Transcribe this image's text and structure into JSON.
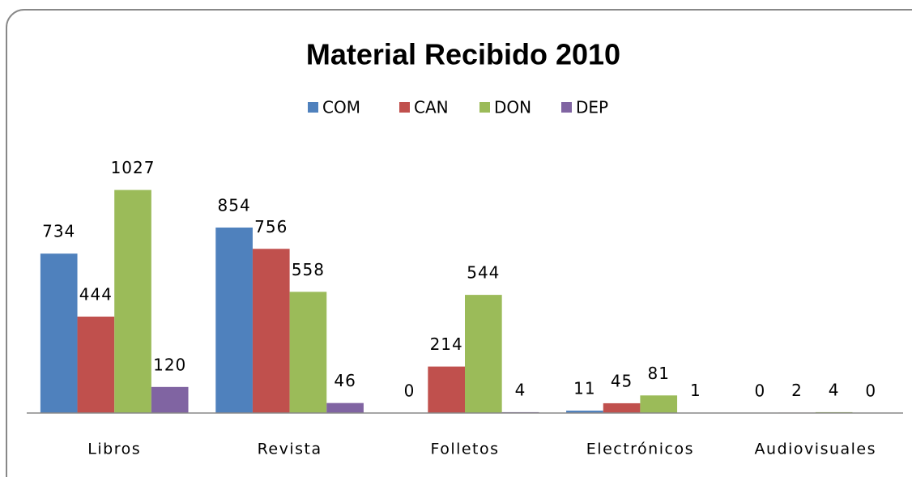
{
  "chart_data": {
    "type": "bar",
    "title": "Material Recibido 2010",
    "categories": [
      "Libros",
      "Revista",
      "Folletos",
      "Electrónicos",
      "Audiovisuales"
    ],
    "series": [
      {
        "name": "COM",
        "color": "#4f81bd",
        "values": [
          734,
          854,
          0,
          11,
          0
        ]
      },
      {
        "name": "CAN",
        "color": "#c0504d",
        "values": [
          444,
          756,
          214,
          45,
          2
        ]
      },
      {
        "name": "DON",
        "color": "#9bbb59",
        "values": [
          1027,
          558,
          544,
          81,
          4
        ]
      },
      {
        "name": "DEP",
        "color": "#8064a2",
        "values": [
          120,
          46,
          4,
          1,
          0
        ]
      }
    ],
    "ylim": [
      0,
      1100
    ],
    "grid": false,
    "legend": "top"
  }
}
